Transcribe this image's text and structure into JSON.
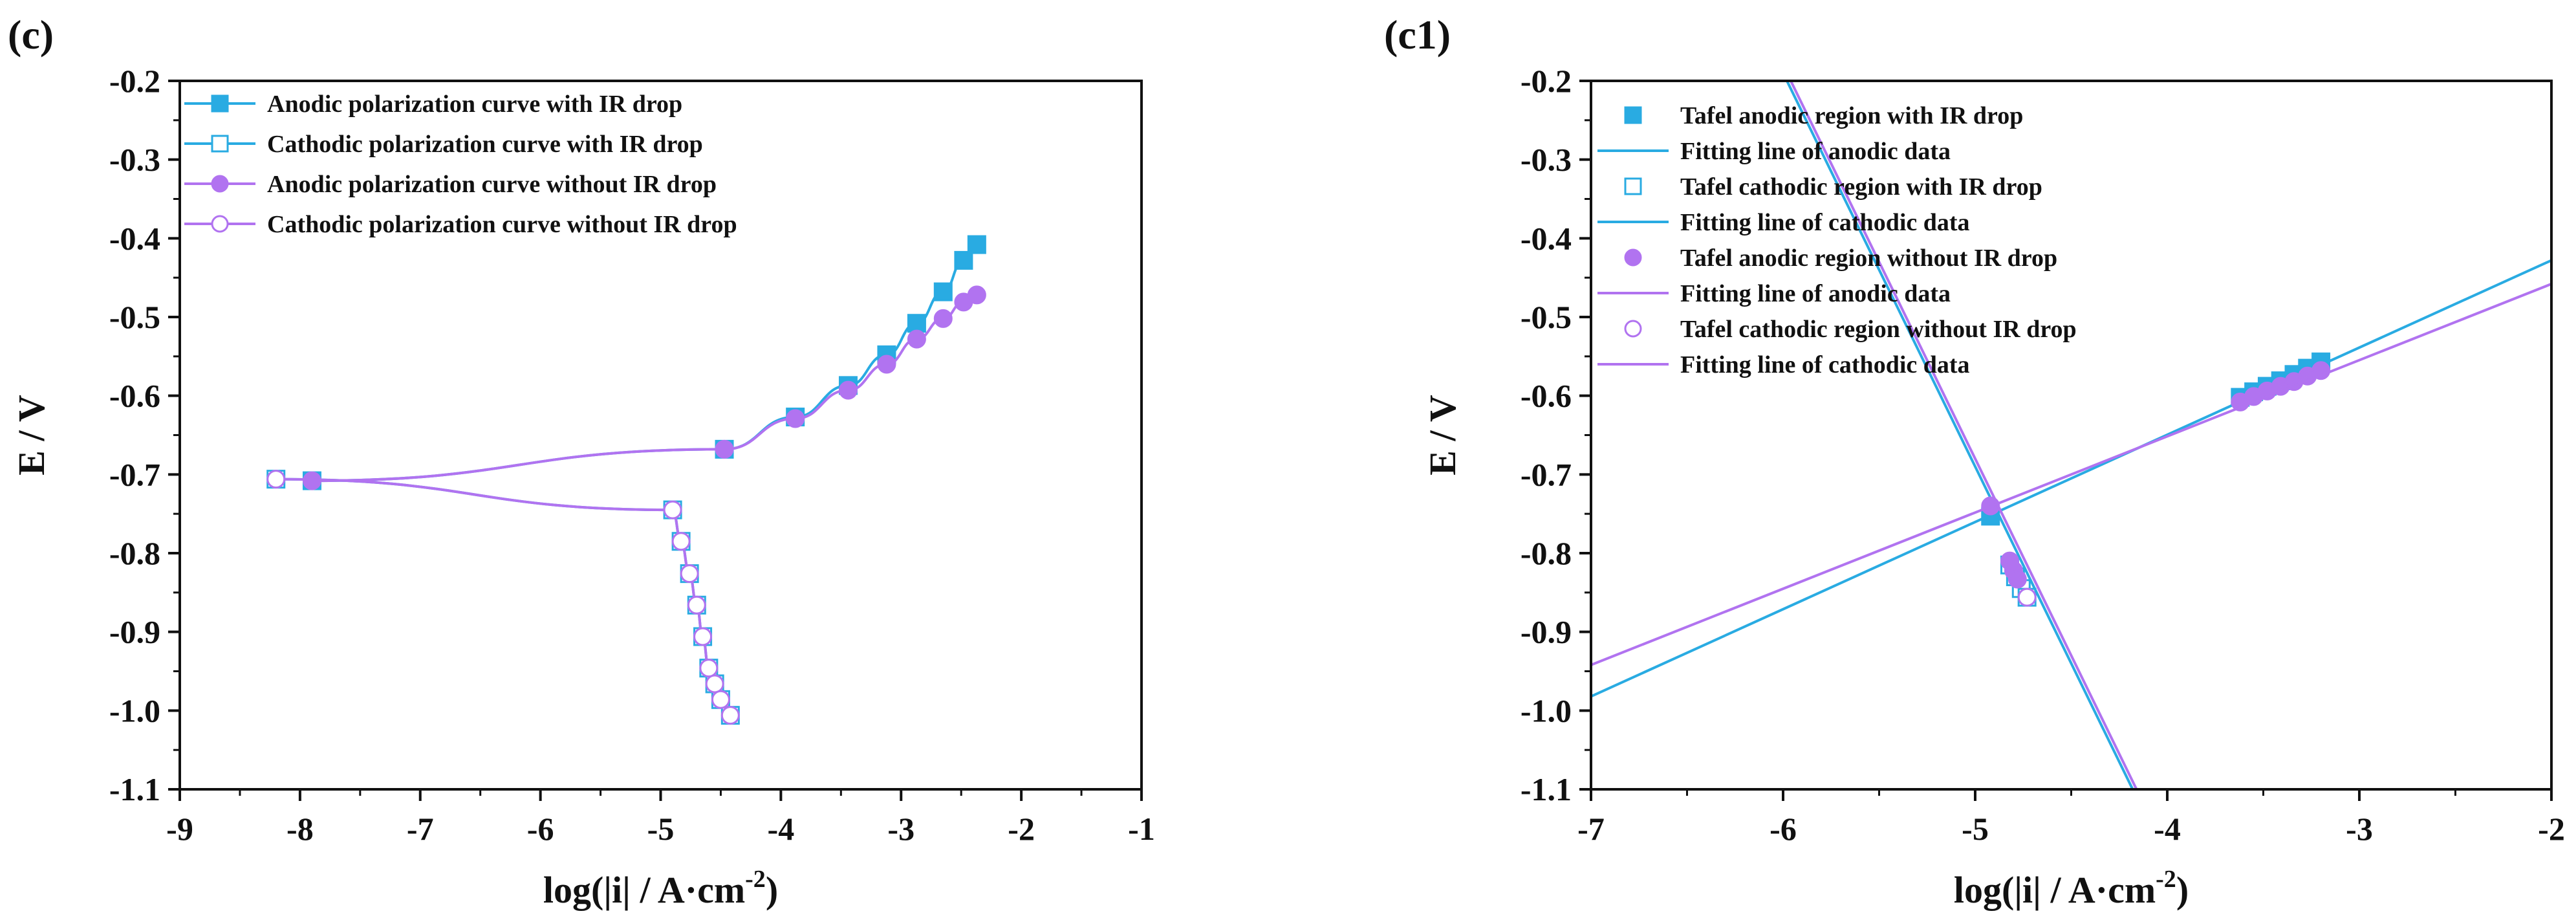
{
  "colors": {
    "blue": "#29ABE2",
    "purple": "#B173F0",
    "axis": "#111111"
  },
  "chart_data": [
    {
      "type": "line",
      "panel_label": "(c)",
      "xlabel": "log(|i| / A·cm",
      "xlabel_sup": "-2",
      "xlabel_tail": ")",
      "ylabel": "E / V",
      "xlim": [
        -9,
        -1
      ],
      "ylim": [
        -1.1,
        -0.2
      ],
      "xticks": [
        -9,
        -8,
        -7,
        -6,
        -5,
        -4,
        -3,
        -2,
        -1
      ],
      "xtick_labels": [
        "-9",
        "-8",
        "-7",
        "-6",
        "-5",
        "-4",
        "-3",
        "-2",
        "-1"
      ],
      "yticks": [
        -0.2,
        -0.3,
        -0.4,
        -0.5,
        -0.6,
        -0.7,
        -0.8,
        -0.9,
        -1.0,
        -1.1
      ],
      "ytick_labels": [
        "-0.2",
        "-0.3",
        "-0.4",
        "-0.5",
        "-0.6",
        "-0.7",
        "-0.8",
        "-0.9",
        "-1.0",
        "-1.1"
      ],
      "series": [
        {
          "name": "Anodic polarization curve with IR drop",
          "color": "blue",
          "marker": "square",
          "filled": true,
          "x": [
            -7.9,
            -4.47,
            -3.88,
            -3.44,
            -3.12,
            -2.87,
            -2.65,
            -2.48,
            -2.37
          ],
          "y": [
            -0.708,
            -0.668,
            -0.627,
            -0.587,
            -0.548,
            -0.508,
            -0.468,
            -0.428,
            -0.408
          ]
        },
        {
          "name": "Cathodic polarization curve with IR drop",
          "color": "blue",
          "marker": "square",
          "filled": false,
          "x": [
            -8.2,
            -4.9,
            -4.83,
            -4.76,
            -4.7,
            -4.65,
            -4.6,
            -4.55,
            -4.5,
            -4.42
          ],
          "y": [
            -0.706,
            -0.745,
            -0.785,
            -0.826,
            -0.866,
            -0.906,
            -0.946,
            -0.966,
            -0.986,
            -1.006
          ]
        },
        {
          "name": "Anodic polarization curve without IR drop",
          "color": "purple",
          "marker": "circle",
          "filled": true,
          "x": [
            -7.9,
            -4.47,
            -3.88,
            -3.44,
            -3.12,
            -2.87,
            -2.65,
            -2.48,
            -2.37
          ],
          "y": [
            -0.708,
            -0.668,
            -0.629,
            -0.593,
            -0.56,
            -0.528,
            -0.502,
            -0.481,
            -0.472
          ]
        },
        {
          "name": "Cathodic polarization curve without IR drop",
          "color": "purple",
          "marker": "circle",
          "filled": false,
          "x": [
            -8.2,
            -4.9,
            -4.83,
            -4.76,
            -4.7,
            -4.65,
            -4.6,
            -4.55,
            -4.5,
            -4.42
          ],
          "y": [
            -0.706,
            -0.745,
            -0.785,
            -0.826,
            -0.866,
            -0.906,
            -0.946,
            -0.966,
            -0.986,
            -1.006
          ]
        }
      ],
      "legend_position": "top-left"
    },
    {
      "type": "line",
      "panel_label": "(c1)",
      "xlabel": "log(|i| / A·cm",
      "xlabel_sup": "-2",
      "xlabel_tail": ")",
      "ylabel": "E / V",
      "xlim": [
        -7,
        -2
      ],
      "ylim": [
        -1.1,
        -0.2
      ],
      "xticks": [
        -7,
        -6,
        -5,
        -4,
        -3,
        -2
      ],
      "xtick_labels": [
        "-7",
        "-6",
        "-5",
        "-4",
        "-3",
        "-2"
      ],
      "yticks": [
        -0.2,
        -0.3,
        -0.4,
        -0.5,
        -0.6,
        -0.7,
        -0.8,
        -0.9,
        -1.0,
        -1.1
      ],
      "ytick_labels": [
        "-0.2",
        "-0.3",
        "-0.4",
        "-0.5",
        "-0.6",
        "-0.7",
        "-0.8",
        "-0.9",
        "-1.0",
        "-1.1"
      ],
      "series": [
        {
          "name": "Tafel anodic region with IR drop",
          "color": "blue",
          "marker": "square",
          "filled": true,
          "style": "markers",
          "x": [
            -4.92,
            -3.62,
            -3.55,
            -3.48,
            -3.41,
            -3.34,
            -3.27,
            -3.2
          ],
          "y": [
            -0.753,
            -0.602,
            -0.595,
            -0.588,
            -0.581,
            -0.573,
            -0.565,
            -0.557
          ]
        },
        {
          "name": "Fitting line of anodic data",
          "color": "blue",
          "style": "line",
          "x": [
            -7,
            -2
          ],
          "y": [
            -0.982,
            -0.428
          ]
        },
        {
          "name": "Tafel cathodic region with IR drop",
          "color": "blue",
          "marker": "square",
          "filled": false,
          "style": "markers",
          "x": [
            -4.82,
            -4.79,
            -4.76,
            -4.73
          ],
          "y": [
            -0.815,
            -0.83,
            -0.845,
            -0.856
          ]
        },
        {
          "name": "Fitting line of cathodic data",
          "color": "blue",
          "style": "line",
          "x": [
            -5.98,
            -4.18
          ],
          "y": [
            -0.2,
            -1.1
          ]
        },
        {
          "name": "Tafel anodic region without IR drop",
          "color": "purple",
          "marker": "circle",
          "filled": true,
          "style": "markers",
          "x": [
            -4.92,
            -4.82,
            -4.8,
            -4.78,
            -3.62,
            -3.55,
            -3.48,
            -3.41,
            -3.34,
            -3.27,
            -3.2
          ],
          "y": [
            -0.74,
            -0.81,
            -0.822,
            -0.833,
            -0.608,
            -0.601,
            -0.594,
            -0.588,
            -0.582,
            -0.575,
            -0.568
          ]
        },
        {
          "name": "Fitting line of anodic data",
          "color": "purple",
          "style": "line",
          "x": [
            -7,
            -2
          ],
          "y": [
            -0.942,
            -0.458
          ]
        },
        {
          "name": "Tafel cathodic region without IR drop",
          "color": "purple",
          "marker": "circle",
          "filled": false,
          "style": "markers",
          "x": [
            -4.73
          ],
          "y": [
            -0.856
          ]
        },
        {
          "name": "Fitting line of cathodic data",
          "color": "purple",
          "style": "line",
          "x": [
            -5.96,
            -4.16
          ],
          "y": [
            -0.2,
            -1.1
          ]
        }
      ],
      "legend_position": "top-left"
    }
  ]
}
